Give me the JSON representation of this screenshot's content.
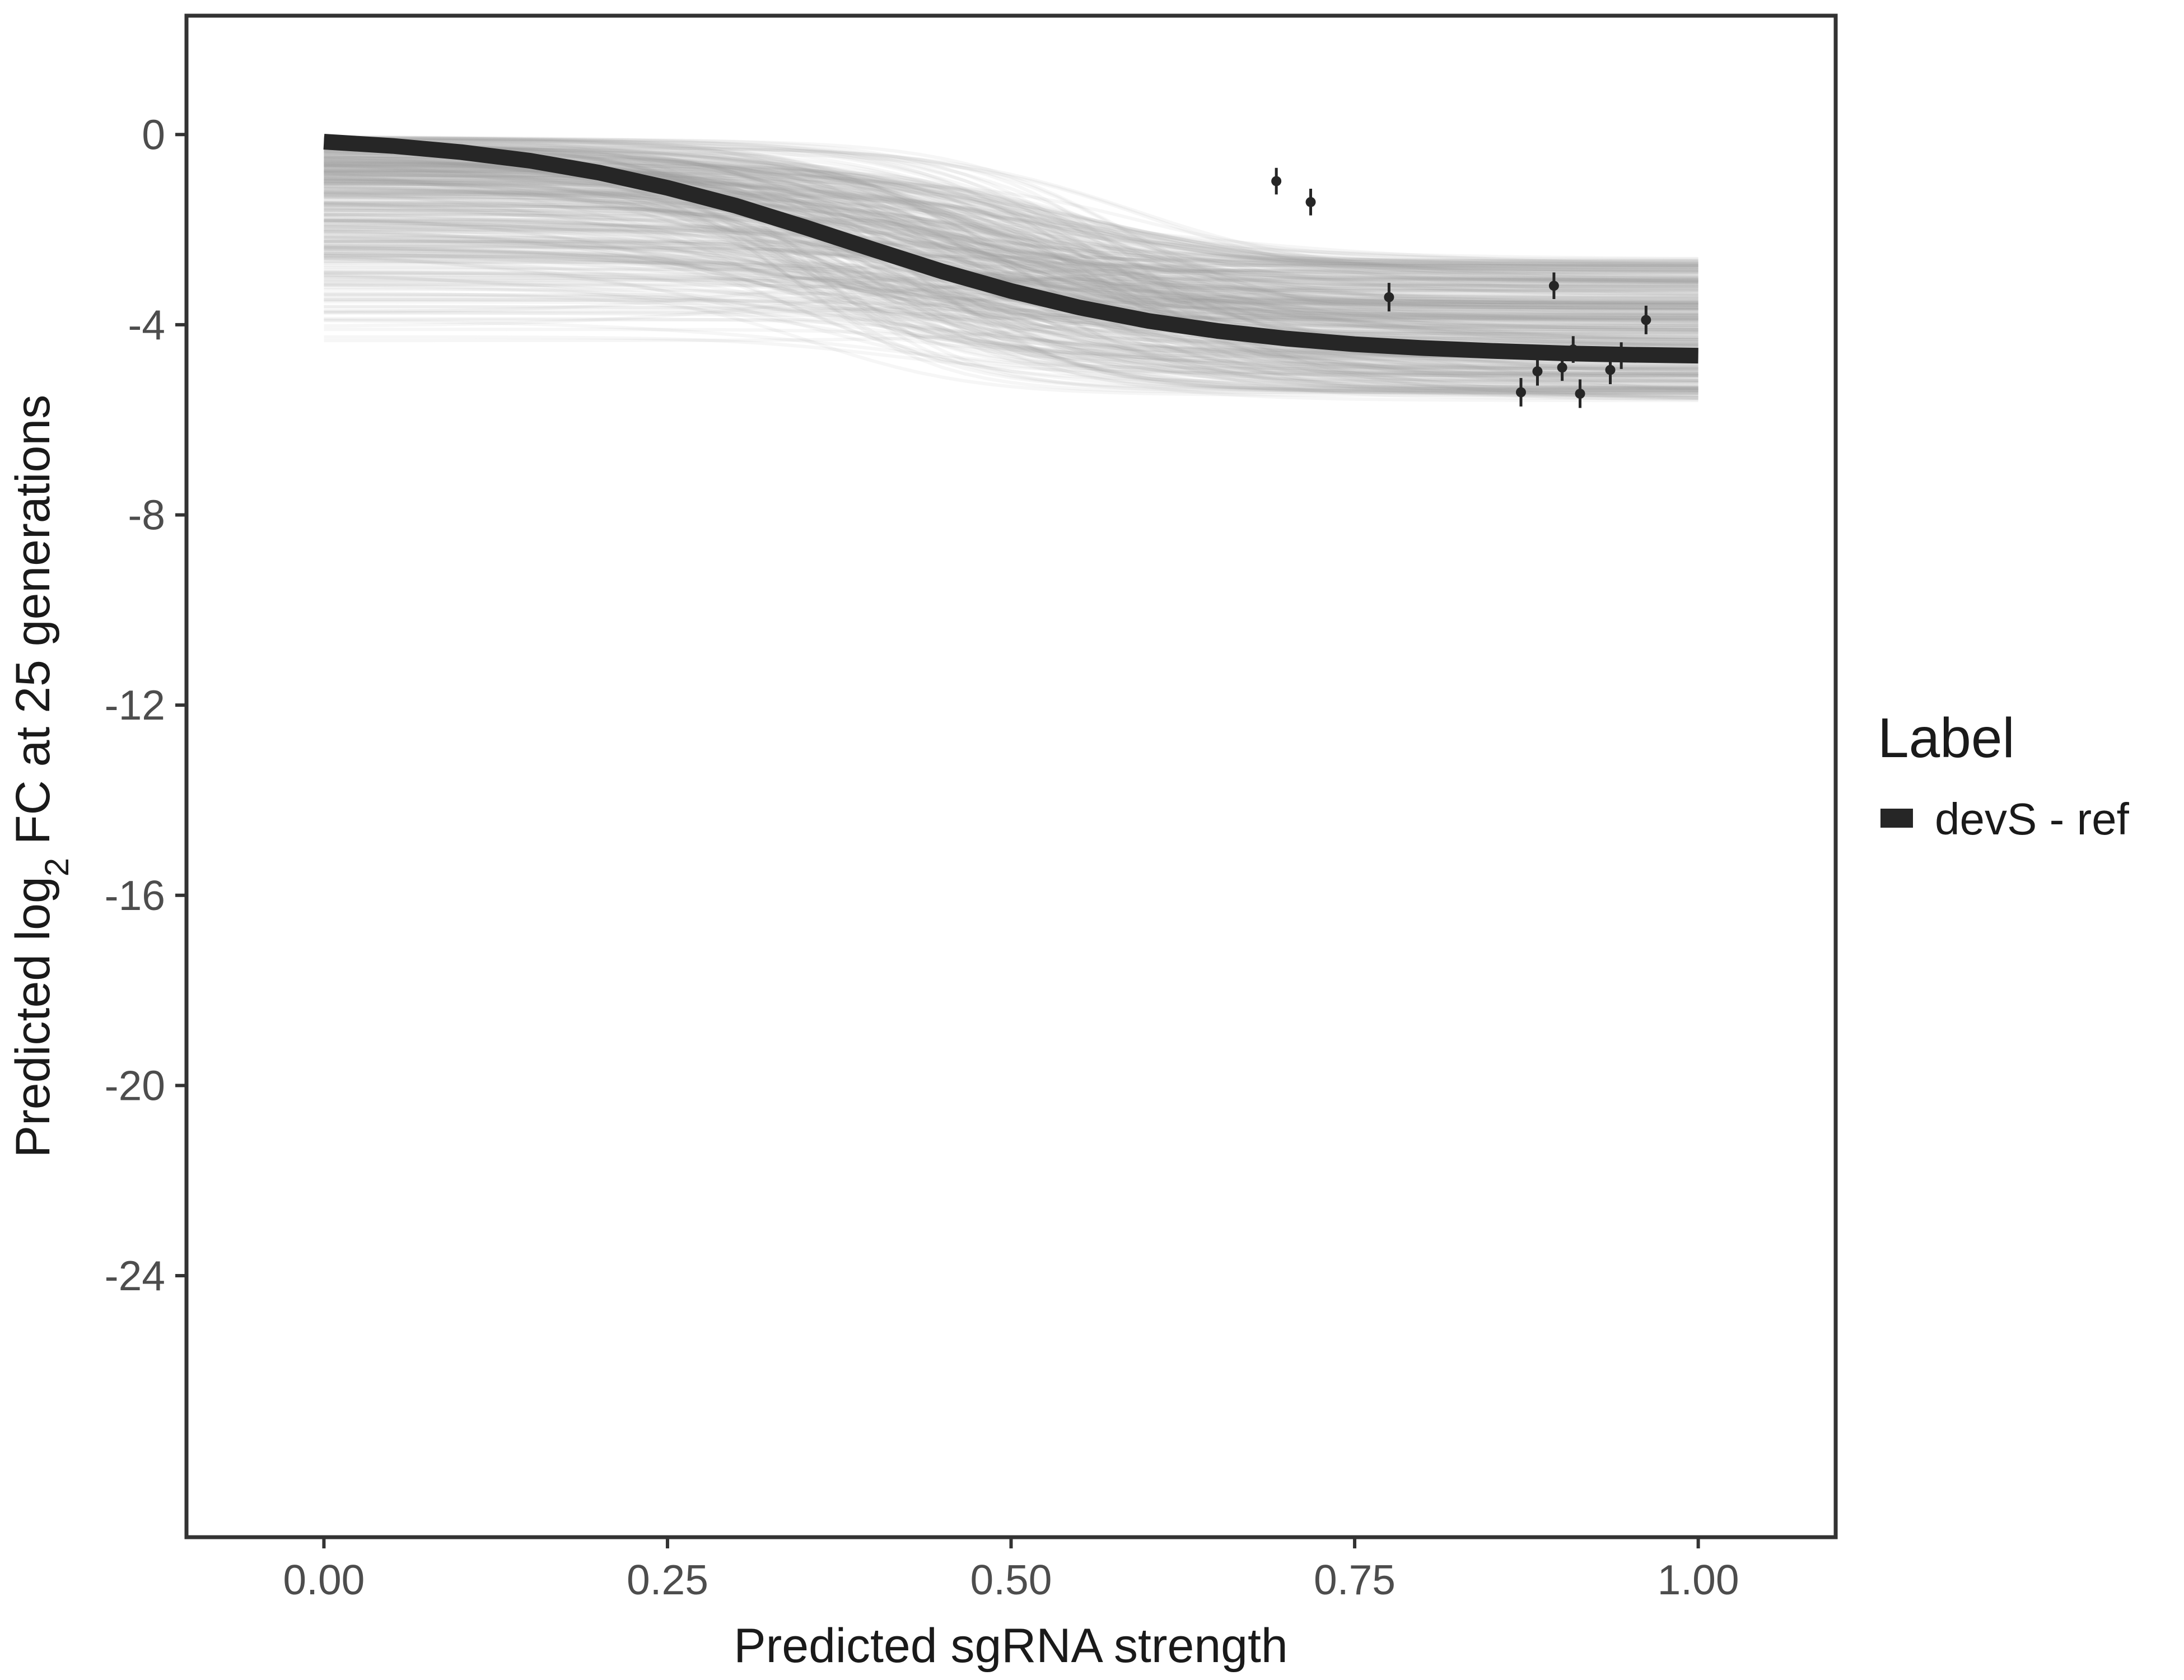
{
  "chart_data": {
    "type": "line",
    "title": "",
    "xlabel": "Predicted sgRNA strength",
    "ylabel": {
      "prefix": "Predicted  log",
      "subscript": "2",
      "suffix": " FC at 25 generations"
    },
    "xlim": [
      -0.1,
      1.1
    ],
    "ylim": [
      -29.5,
      2.5
    ],
    "x_ticks": [
      0,
      0.25,
      0.5,
      0.75,
      1
    ],
    "x_tick_labels": [
      "0.00",
      "0.25",
      "0.50",
      "0.75",
      "1.00"
    ],
    "y_ticks": [
      0,
      -4,
      -8,
      -12,
      -16,
      -20,
      -24
    ],
    "y_tick_labels": [
      "0",
      "-4",
      "-8",
      "-12",
      "-16",
      "-20",
      "-24"
    ],
    "grid": false,
    "legend": {
      "title": "Label",
      "position": "right",
      "entries": [
        {
          "name": "devS - ref",
          "color": "#262626"
        }
      ]
    },
    "colors": {
      "fit_line": "#262626",
      "posterior_draws": "#9a9a9a",
      "points": "#262626",
      "panel_border": "#333333"
    },
    "fit_curve": {
      "name": "devS - ref",
      "x": [
        0,
        0.05,
        0.1,
        0.15,
        0.2,
        0.25,
        0.3,
        0.35,
        0.4,
        0.45,
        0.5,
        0.55,
        0.6,
        0.65,
        0.7,
        0.75,
        0.8,
        0.85,
        0.9,
        0.95,
        1.0
      ],
      "y": [
        -0.15,
        -0.24,
        -0.37,
        -0.55,
        -0.8,
        -1.12,
        -1.5,
        -1.95,
        -2.42,
        -2.88,
        -3.29,
        -3.64,
        -3.92,
        -4.13,
        -4.29,
        -4.41,
        -4.49,
        -4.55,
        -4.6,
        -4.63,
        -4.65
      ]
    },
    "posterior_draws": {
      "count": 400,
      "y_at_0_range": [
        -4.4,
        -0.05
      ],
      "y_at_1_range": [
        -5.6,
        -2.6
      ]
    },
    "points": [
      {
        "x": 0.693,
        "y": -0.98,
        "err": 0.28
      },
      {
        "x": 0.718,
        "y": -1.42,
        "err": 0.28
      },
      {
        "x": 0.775,
        "y": -3.42,
        "err": 0.3
      },
      {
        "x": 0.871,
        "y": -5.42,
        "err": 0.3
      },
      {
        "x": 0.883,
        "y": -4.98,
        "err": 0.3
      },
      {
        "x": 0.895,
        "y": -3.18,
        "err": 0.28
      },
      {
        "x": 0.901,
        "y": -4.9,
        "err": 0.28
      },
      {
        "x": 0.909,
        "y": -4.52,
        "err": 0.28
      },
      {
        "x": 0.914,
        "y": -5.45,
        "err": 0.3
      },
      {
        "x": 0.936,
        "y": -4.95,
        "err": 0.3
      },
      {
        "x": 0.944,
        "y": -4.65,
        "err": 0.28
      },
      {
        "x": 0.962,
        "y": -3.9,
        "err": 0.3
      }
    ]
  }
}
